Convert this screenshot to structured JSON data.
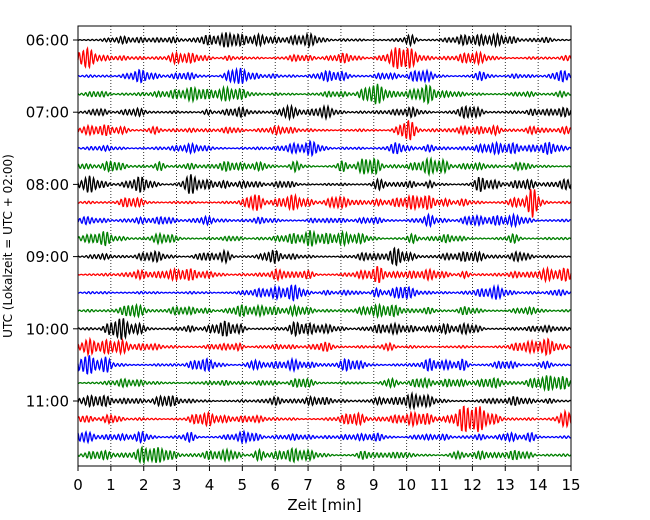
{
  "chart_data": {
    "type": "line",
    "subtype": "helicorder (dayplot) seismogram",
    "xlabel": "Zeit  [min]",
    "ylabel": "UTC (Lokalzeit = UTC + 02:00)",
    "xlim": [
      0,
      15
    ],
    "x_ticks": [
      "0",
      "1",
      "2",
      "3",
      "4",
      "5",
      "6",
      "7",
      "8",
      "9",
      "10",
      "11",
      "12",
      "13",
      "14",
      "15"
    ],
    "grid": "vertical dotted lines at each minute",
    "rows_per_hour": 4,
    "row_interval_minutes": 15,
    "row_start_times_utc": [
      "06:00",
      "06:15",
      "06:30",
      "06:45",
      "07:00",
      "07:15",
      "07:30",
      "07:45",
      "08:00",
      "08:15",
      "08:30",
      "08:45",
      "09:00",
      "09:15",
      "09:30",
      "09:45",
      "10:00",
      "10:15",
      "10:30",
      "10:45",
      "11:00",
      "11:15",
      "11:30",
      "11:45"
    ],
    "y_tick_labels": [
      "06:00",
      "07:00",
      "08:00",
      "09:00",
      "10:00",
      "11:00"
    ],
    "trace_colors": [
      "#000000",
      "#ff0000",
      "#0000ff",
      "#008000"
    ],
    "signal": "continuous low-amplitude background noise with short wave packets, no large events"
  }
}
